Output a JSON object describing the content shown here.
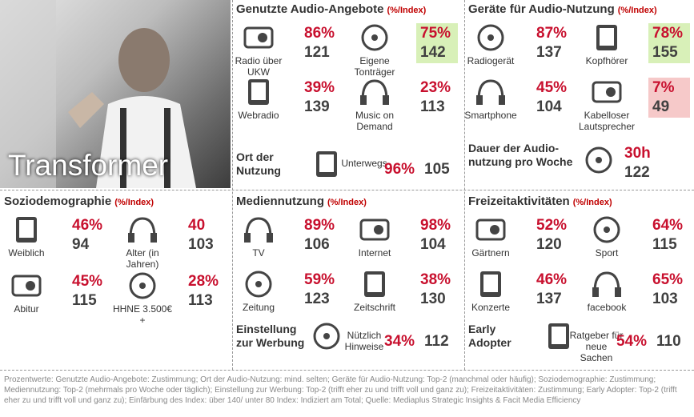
{
  "hero": {
    "title": "Transformer"
  },
  "sections": [
    {
      "title": "Genutzte Audio-Angebote",
      "unit": "(%/Index)",
      "items": [
        {
          "label": "Radio über UKW",
          "value": "86%",
          "index": "121"
        },
        {
          "label": "Eigene Tonträger",
          "value": "75%",
          "index": "142",
          "highlight": "#d8f0b8"
        },
        {
          "label": "Webradio",
          "value": "39%",
          "index": "139"
        },
        {
          "label": "Music on Demand",
          "value": "23%",
          "index": "113"
        }
      ],
      "extra": {
        "heading": "Ort der Nutzung",
        "label": "Unterwegs",
        "value": "96%",
        "index": "105"
      }
    },
    {
      "title": "Geräte für Audio-Nutzung",
      "unit": "(%/Index)",
      "items": [
        {
          "label": "Radiogerät",
          "value": "87%",
          "index": "137"
        },
        {
          "label": "Kopfhörer",
          "value": "78%",
          "index": "155",
          "highlight": "#d8f0b8"
        },
        {
          "label": "Smartphone",
          "value": "45%",
          "index": "104"
        },
        {
          "label": "Kabelloser Lautsprecher",
          "value": "7%",
          "index": "49",
          "highlight": "#f6c9c9"
        }
      ],
      "extra": {
        "heading": "Dauer der Audio-nutzung pro Woche",
        "value": "30h",
        "index": "122"
      }
    },
    {
      "title": "Soziodemographie",
      "unit": "(%/Index)",
      "items": [
        {
          "label": "Weiblich",
          "value": "46%",
          "index": "94"
        },
        {
          "label": "Alter (in Jahren)",
          "value": "40",
          "index": "103"
        },
        {
          "label": "Abitur",
          "value": "45%",
          "index": "115"
        },
        {
          "label": "HHNE 3.500€+",
          "value": "28%",
          "index": "113"
        }
      ]
    },
    {
      "title": "Mediennutzung",
      "unit": "(%/Index)",
      "items": [
        {
          "label": "TV",
          "value": "89%",
          "index": "106"
        },
        {
          "label": "Internet",
          "value": "98%",
          "index": "104"
        },
        {
          "label": "Zeitung",
          "value": "59%",
          "index": "123"
        },
        {
          "label": "Zeitschrift",
          "value": "38%",
          "index": "130"
        }
      ],
      "extra": {
        "heading": "Einstellung zur Werbung",
        "label": "Nützlich Hinweise",
        "value": "34%",
        "index": "112"
      }
    },
    {
      "title": "Freizeitaktivitäten",
      "unit": "(%/Index)",
      "items": [
        {
          "label": "Gärtnern",
          "value": "52%",
          "index": "120"
        },
        {
          "label": "Sport",
          "value": "64%",
          "index": "115"
        },
        {
          "label": "Konzerte",
          "value": "46%",
          "index": "137"
        },
        {
          "label": "facebook",
          "value": "65%",
          "index": "103"
        }
      ],
      "extra": {
        "heading": "Early Adopter",
        "label": "Ratgeber für neue Sachen",
        "value": "54%",
        "index": "110"
      }
    }
  ],
  "footer": "Prozentwerte: Genutzte Audio-Angebote: Zustimmung; Ort der Audio-Nutzung: mind. selten; Geräte für Audio-Nutzung: Top-2 (manchmal oder häufig); Soziodemographie: Zustimmung; Mediennutzung: Top-2 (mehrmals pro Woche oder täglich); Einstellung zur Werbung: Top-2 (trifft eher zu und trifft voll und ganz zu); Freizeitaktivitäten: Zustimmung; Early Adopter: Top-2 (trifft eher zu und trifft voll und ganz zu); Einfärbung des Index: über 140/ unter 80 Index: Indiziert am Total; Quelle: Mediaplus Strategic Insights & Facit Media Efficiency"
}
